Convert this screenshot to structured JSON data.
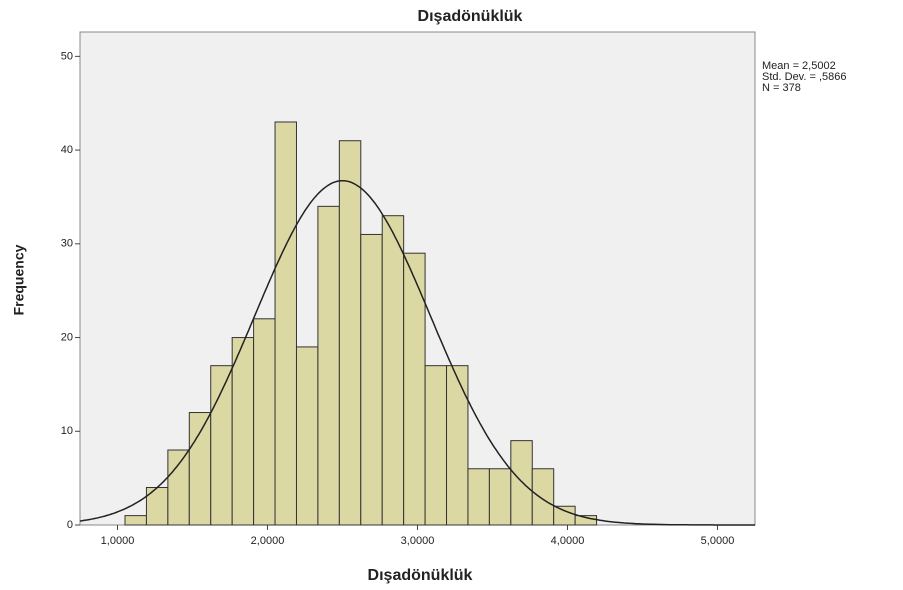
{
  "chart_data": {
    "type": "histogram",
    "title": "Dışadönüklük",
    "x_label": "Dışadönüklük",
    "y_label": "Frequency",
    "bins": [
      1.05,
      1.1929,
      1.3358,
      1.4787,
      1.6216,
      1.7645,
      1.9074,
      2.0503,
      2.1932,
      2.3361,
      2.479,
      2.6219,
      2.7648,
      2.9077,
      3.0506,
      3.1935,
      3.3364,
      3.4793,
      3.6222,
      3.7651,
      3.908,
      4.0509,
      4.1938
    ],
    "values": [
      1,
      4,
      8,
      12,
      17,
      20,
      22,
      43,
      19,
      34,
      41,
      31,
      33,
      29,
      17,
      17,
      6,
      6,
      9,
      6,
      2,
      1
    ],
    "color": "#dcd8a4",
    "mean": 2.5002,
    "std": 0.5866,
    "n": 378,
    "stats_labels": [
      "Mean = 2,5002",
      "Std. Dev. = ,5866",
      "N = 378"
    ],
    "xlim": [
      0.75,
      5.25
    ],
    "xticks": [
      {
        "value": 1,
        "label": "1,0000"
      },
      {
        "value": 2,
        "label": "2,0000"
      },
      {
        "value": 3,
        "label": "3,0000"
      },
      {
        "value": 4,
        "label": "4,0000"
      },
      {
        "value": 5,
        "label": "5,0000"
      }
    ],
    "ylim": [
      0,
      52.6
    ],
    "yticks": [
      0,
      10,
      20,
      30,
      40,
      50
    ]
  }
}
